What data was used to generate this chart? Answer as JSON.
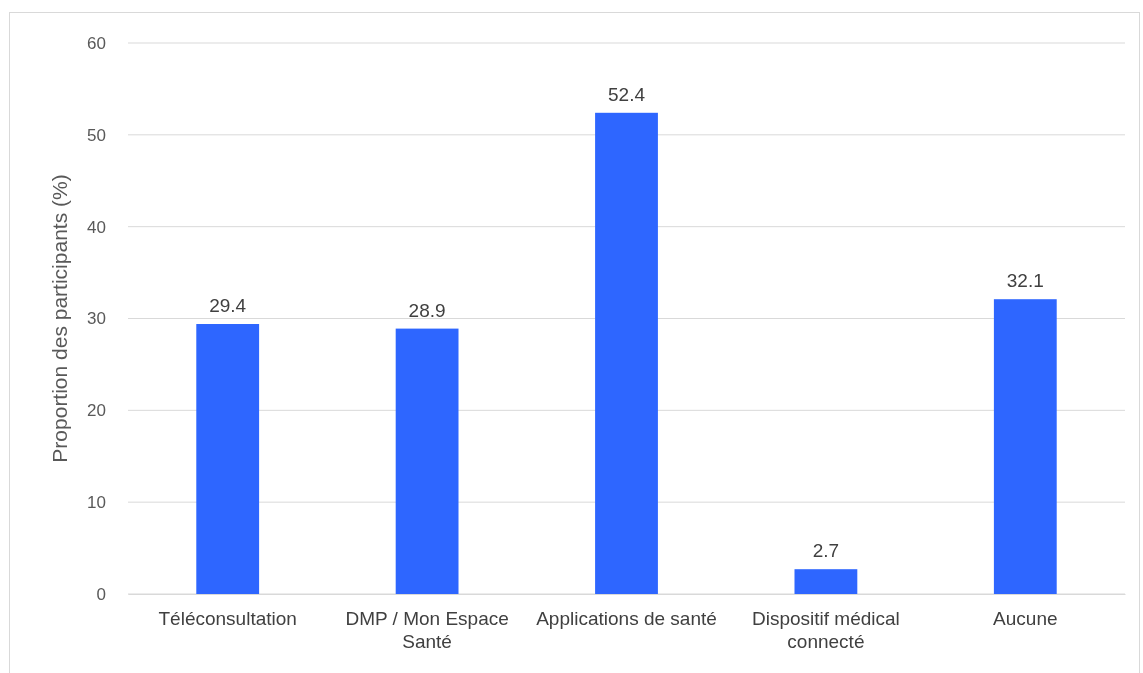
{
  "chart_data": {
    "type": "bar",
    "ylabel": "Proportion des participants (%)",
    "categories": [
      "Téléconsultation",
      "DMP / Mon Espace Santé",
      "Applications de santé",
      "Dispositif médical connecté",
      "Aucune"
    ],
    "values": [
      29.4,
      28.9,
      52.4,
      2.7,
      32.1
    ],
    "color": "#2e66ff",
    "ylim": [
      0,
      60
    ],
    "yticks": [
      0,
      10,
      20,
      30,
      40,
      50,
      60
    ],
    "grid": "y",
    "data_labels": true
  }
}
